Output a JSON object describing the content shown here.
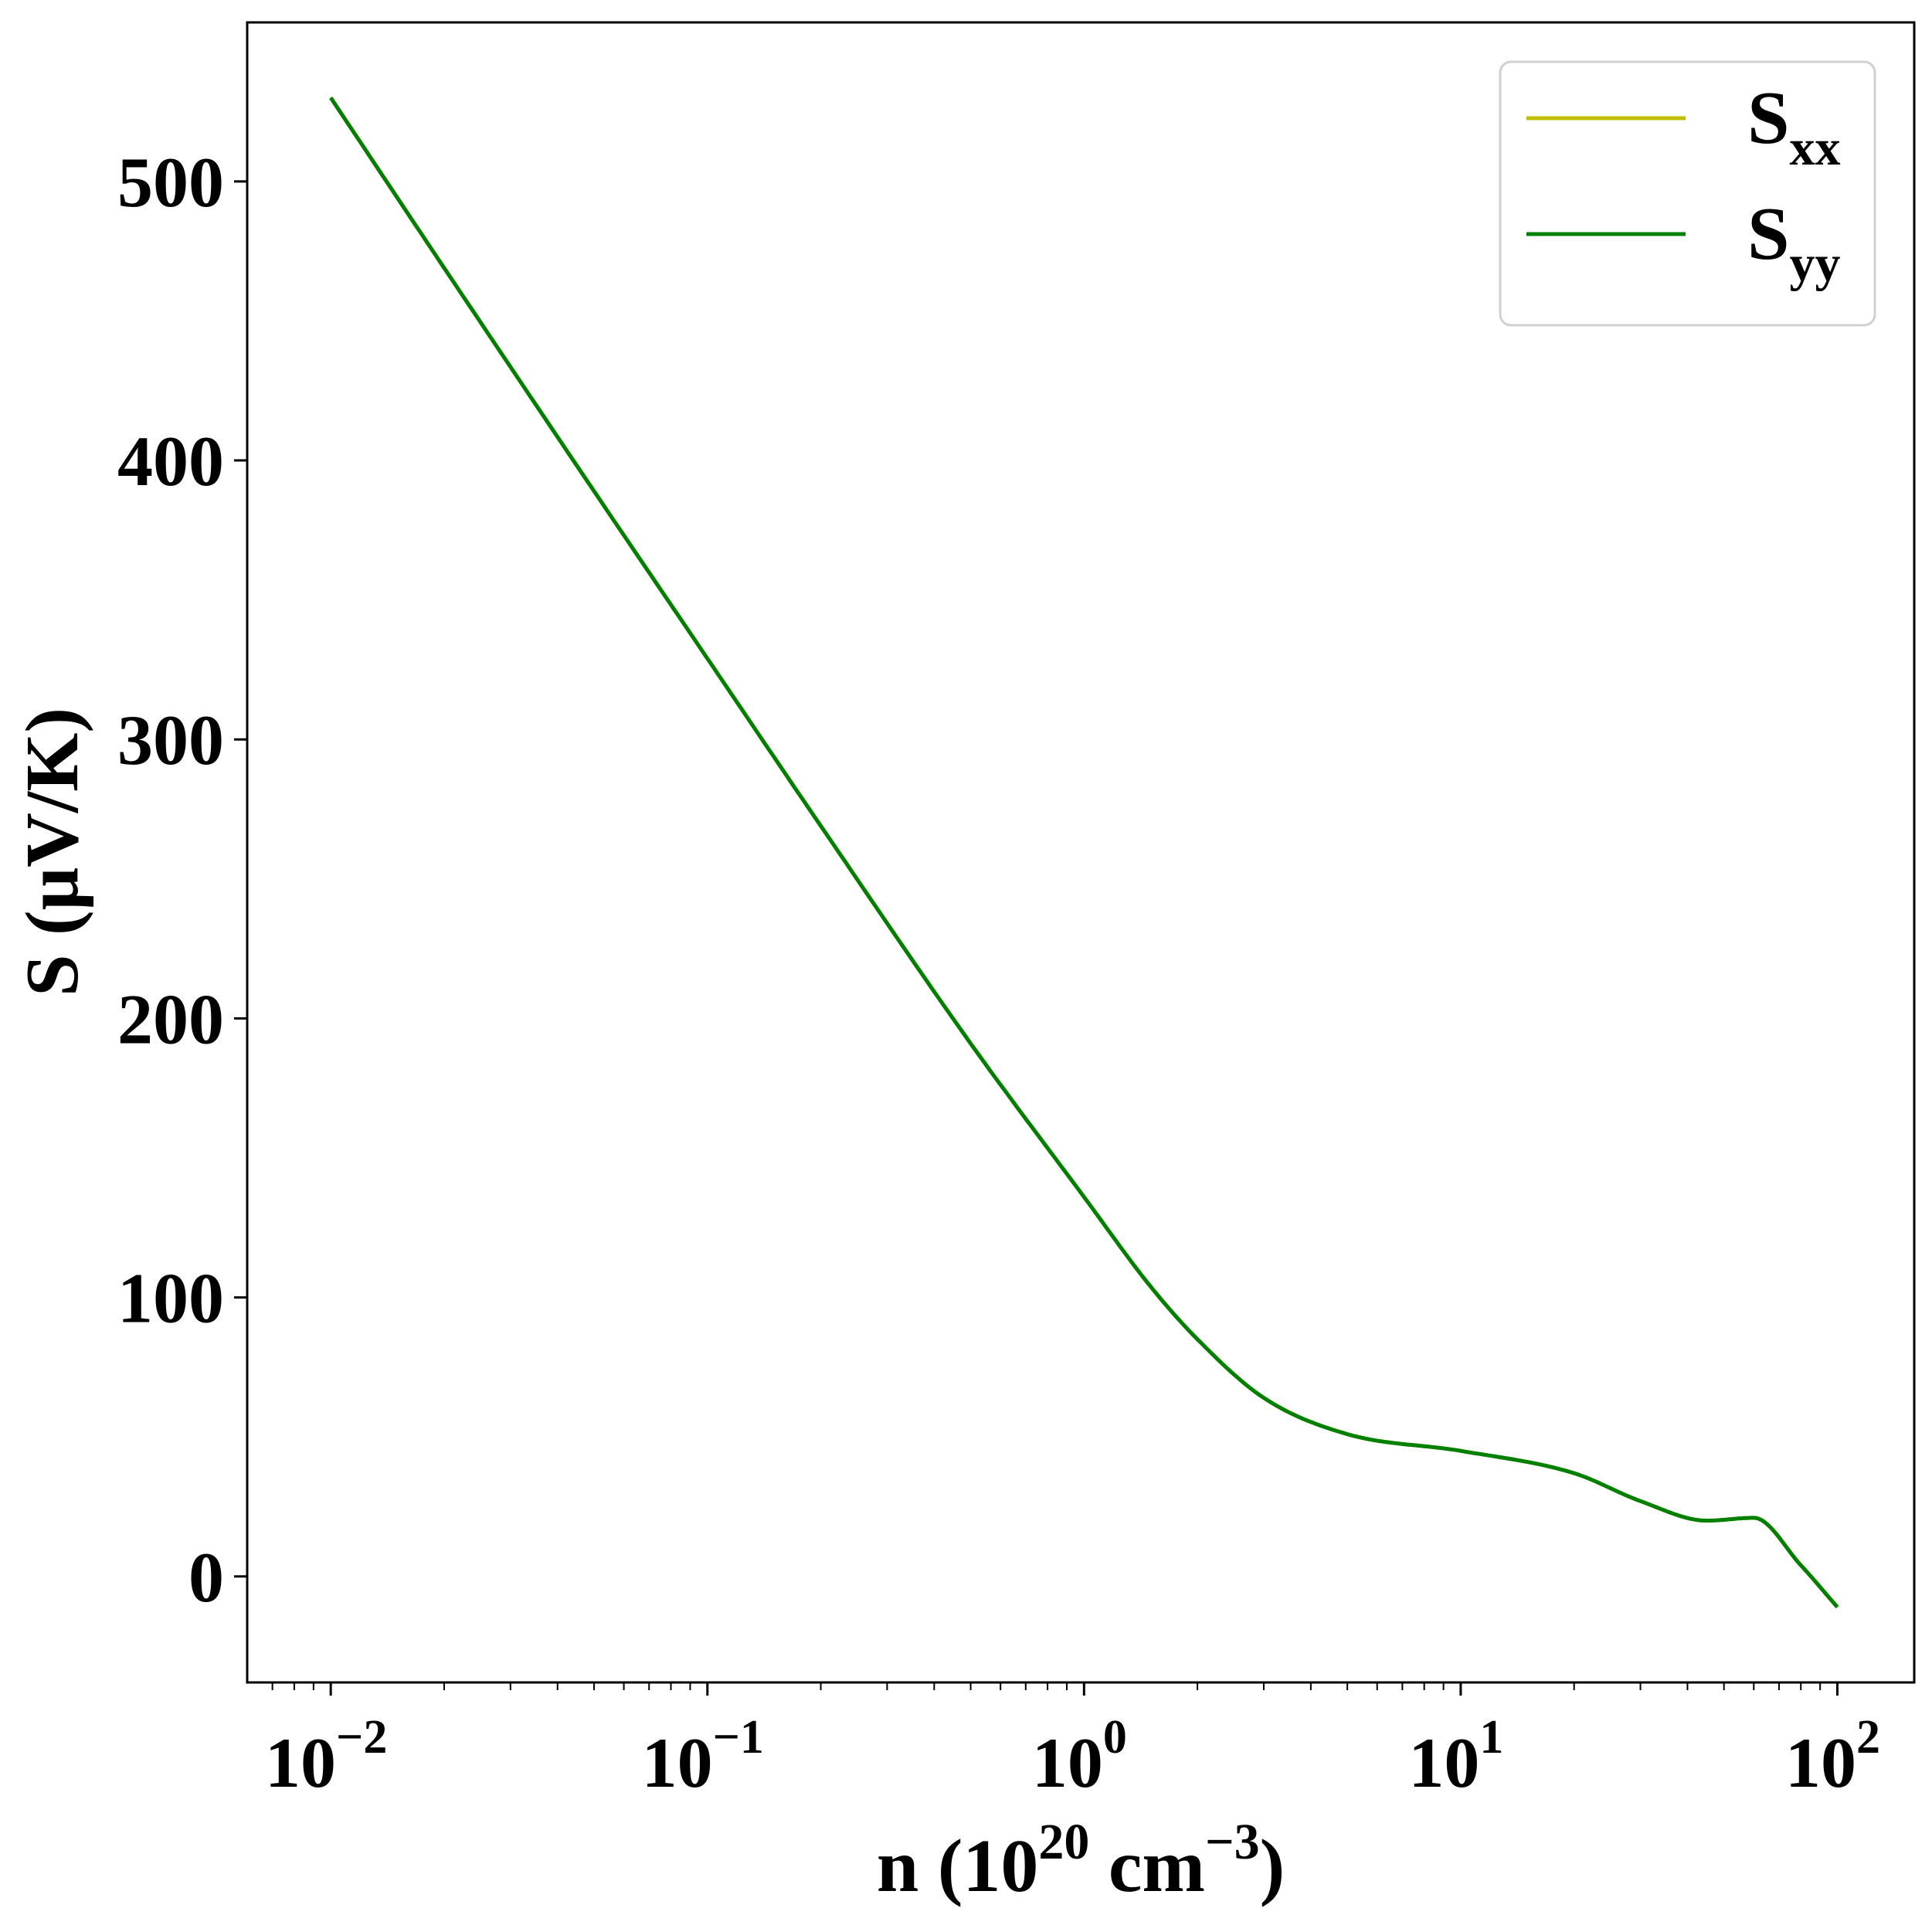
{
  "chart_data": {
    "type": "line",
    "xlabel": {
      "prefix": "n (10",
      "exp1": "20",
      "mid": " cm",
      "exp2": "−3",
      "suffix": ")"
    },
    "ylabel": "S (μV/K)",
    "xscale": "log",
    "xlim": [
      0.006,
      160
    ],
    "ylim": [
      -38,
      557
    ],
    "grid": false,
    "legend_position": "top-right",
    "x_ticks": [
      {
        "value": 0.01,
        "base": "10",
        "exp": "−2"
      },
      {
        "value": 0.1,
        "base": "10",
        "exp": "−1"
      },
      {
        "value": 1,
        "base": "10",
        "exp": "0"
      },
      {
        "value": 10,
        "base": "10",
        "exp": "1"
      },
      {
        "value": 100,
        "base": "10",
        "exp": "2"
      }
    ],
    "y_ticks": [
      0,
      100,
      200,
      300,
      400,
      500
    ],
    "series": [
      {
        "name": "S_xx",
        "label_main": "S",
        "label_sub": "xx",
        "color": "#bfbf00",
        "x": [
          0.01,
          0.02,
          0.05,
          0.1,
          0.2,
          0.5,
          1,
          1.5,
          2,
          3,
          5,
          10,
          20,
          30,
          45,
          60,
          80,
          100
        ],
        "y": [
          530,
          469,
          389,
          329,
          269,
          191,
          136,
          104,
          85,
          64,
          51,
          45,
          37,
          27,
          20,
          21,
          4,
          -11
        ]
      },
      {
        "name": "S_yy",
        "label_main": "S",
        "label_sub": "yy",
        "color": "#008000",
        "x": [
          0.01,
          0.02,
          0.05,
          0.1,
          0.2,
          0.5,
          1,
          1.5,
          2,
          3,
          5,
          10,
          20,
          30,
          45,
          60,
          80,
          100
        ],
        "y": [
          530,
          469,
          389,
          329,
          269,
          191,
          136,
          104,
          85,
          64,
          51,
          45,
          37,
          27,
          20,
          21,
          4,
          -11
        ]
      }
    ]
  }
}
